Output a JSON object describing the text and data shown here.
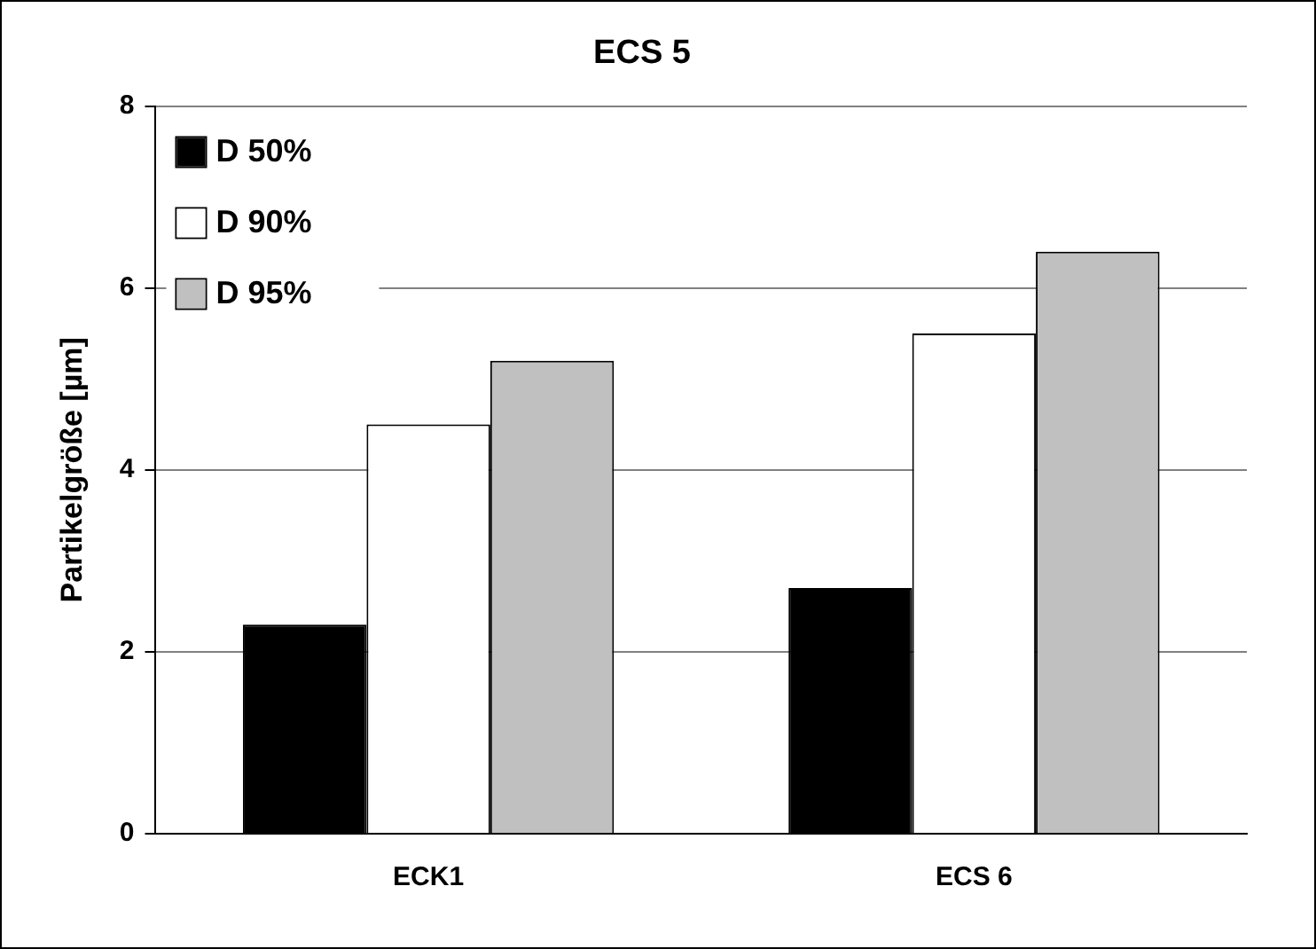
{
  "chart_data": {
    "type": "bar",
    "title": "ECS 5",
    "ylabel": "Partikelgröße [µm]",
    "categories": [
      "ECK1",
      "ECS 6"
    ],
    "series": [
      {
        "name": "D 50%",
        "color": "#000000",
        "values": [
          2.3,
          2.7
        ]
      },
      {
        "name": "D 90%",
        "color": "#ffffff",
        "values": [
          4.5,
          5.5
        ]
      },
      {
        "name": "D 95%",
        "color": "#c0c0c0",
        "values": [
          5.2,
          6.4
        ]
      }
    ],
    "ylim": [
      0,
      8
    ],
    "yticks": [
      0,
      2,
      4,
      6,
      8
    ],
    "grid": "y",
    "legend": "top left"
  }
}
